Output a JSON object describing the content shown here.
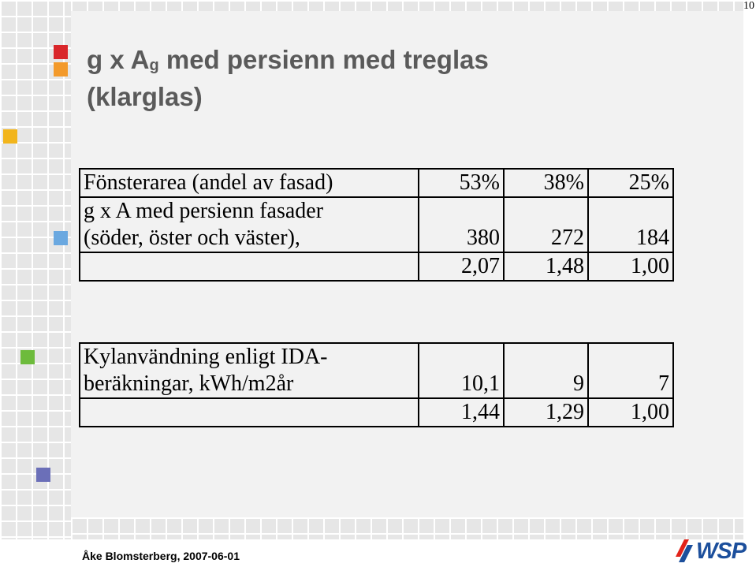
{
  "page_number": "10",
  "title": {
    "line1_before_sub": "g x A",
    "line1_sub": "g",
    "line1_after_sub": " med persienn med treglas",
    "line2": "(klarglas)"
  },
  "table1": {
    "rows": [
      {
        "label": "Fönsterarea (andel av fasad)",
        "values": [
          "53%",
          "38%",
          "25%"
        ]
      },
      {
        "label_line1": "g x A med persienn fasader",
        "label_line2": "(söder, öster och väster),",
        "values": [
          "380",
          "272",
          "184"
        ]
      },
      {
        "label": "",
        "values": [
          "2,07",
          "1,48",
          "1,00"
        ]
      }
    ]
  },
  "table2": {
    "rows": [
      {
        "label_line1": "Kylanvändning enligt IDA-",
        "label_line2": "beräkningar, kWh/m2år",
        "values": [
          "10,1",
          "9",
          "7"
        ]
      },
      {
        "label": "",
        "values": [
          "1,44",
          "1,29",
          "1,00"
        ]
      }
    ]
  },
  "footer": {
    "author": "Åke Blomsterberg, 2007-06-01",
    "logo_text": "WSP",
    "logo_colors": {
      "red": "#e2231a",
      "blue": "#1c4f9c"
    }
  },
  "accent_colors": {
    "red": "#d9262a",
    "orange": "#f39a2b",
    "yellow": "#f2b51c",
    "light_blue": "#6aa8e0",
    "green": "#6dbb3c",
    "purple": "#6b6fb8"
  }
}
